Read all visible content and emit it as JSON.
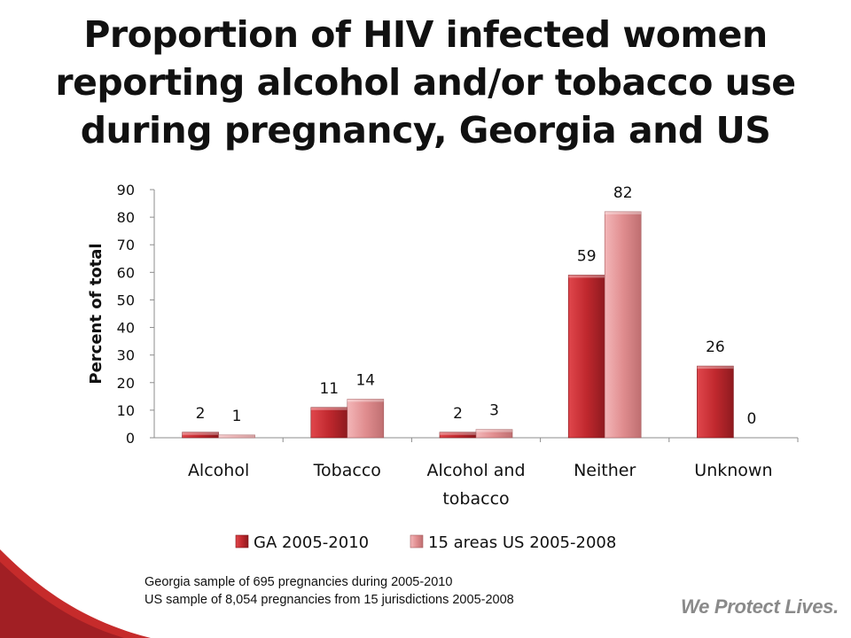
{
  "title_lines": [
    "Proportion of HIV infected women",
    "reporting alcohol and/or tobacco use",
    "during pregnancy, Georgia and US"
  ],
  "footnote_lines": [
    "Georgia sample of 695 pregnancies during 2005-2010",
    "US sample of 8,054 pregnancies from 15 jurisdictions 2005-2008"
  ],
  "tagline": "We Protect Lives.",
  "colors": {
    "accent": "#c62b2b",
    "series_ga": "#c0282e",
    "series_us": "#e08d8f"
  },
  "chart_data": {
    "type": "bar",
    "title": "",
    "xlabel": "",
    "ylabel": "Percent of total",
    "ylim": [
      0,
      90
    ],
    "yticks": [
      0,
      10,
      20,
      30,
      40,
      50,
      60,
      70,
      80,
      90
    ],
    "grid": false,
    "legend_position": "bottom",
    "categories": [
      [
        "Alcohol"
      ],
      [
        "Tobacco"
      ],
      [
        "Alcohol and",
        "tobacco"
      ],
      [
        "Neither"
      ],
      [
        "Unknown"
      ]
    ],
    "series": [
      {
        "name": "GA 2005-2010",
        "values": [
          2,
          11,
          2,
          59,
          26
        ],
        "color": "#c0282e"
      },
      {
        "name": "15 areas US 2005-2008",
        "values": [
          1,
          14,
          3,
          82,
          0
        ],
        "color": "#e08d8f"
      }
    ]
  }
}
